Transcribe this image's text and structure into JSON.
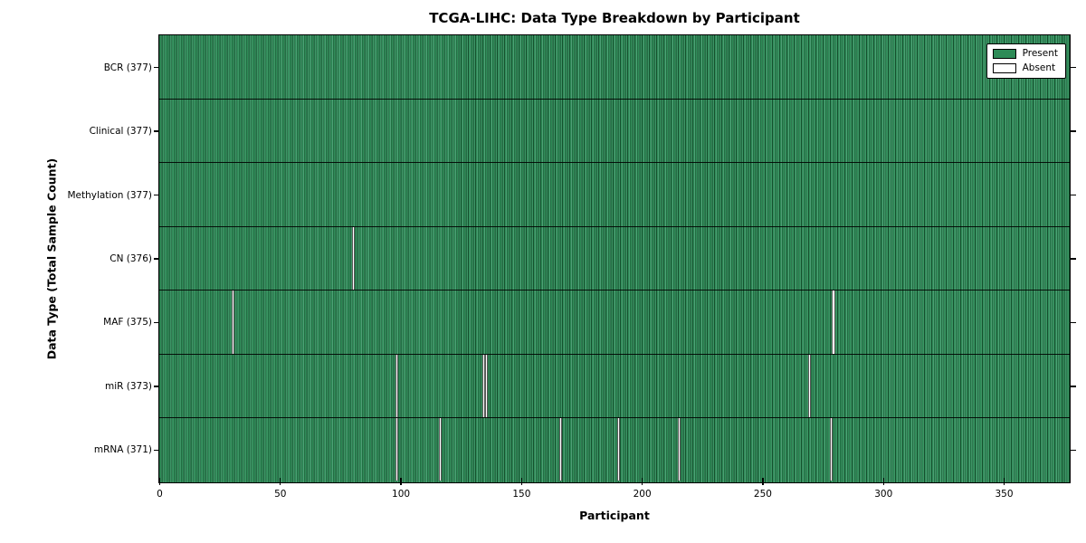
{
  "chart_data": {
    "type": "heatmap",
    "title": "TCGA-LIHC: Data Type Breakdown by Participant",
    "xlabel": "Participant",
    "ylabel": "Data Type (Total Sample Count)",
    "x_range": [
      0,
      377
    ],
    "x_ticks": [
      0,
      50,
      100,
      150,
      200,
      250,
      300,
      350
    ],
    "grid": false,
    "legend_position": "upper right",
    "colors": {
      "present": "#2e8b57",
      "absent": "#ffffff",
      "bar_edge": "#000000"
    },
    "legend": [
      {
        "label": "Present",
        "color": "#2e8b57"
      },
      {
        "label": "Absent",
        "color": "#ffffff"
      }
    ],
    "rows": [
      {
        "label": "BCR (377)",
        "name": "BCR",
        "total_samples": 377,
        "absent_participants": []
      },
      {
        "label": "Clinical (377)",
        "name": "Clinical",
        "total_samples": 377,
        "absent_participants": []
      },
      {
        "label": "Methylation (377)",
        "name": "Methylation",
        "total_samples": 377,
        "absent_participants": []
      },
      {
        "label": "CN (376)",
        "name": "CN",
        "total_samples": 376,
        "absent_participants": [
          80
        ]
      },
      {
        "label": "MAF (375)",
        "name": "MAF",
        "total_samples": 375,
        "absent_participants": [
          30,
          279
        ]
      },
      {
        "label": "miR (373)",
        "name": "miR",
        "total_samples": 373,
        "absent_participants": [
          98,
          134,
          135,
          269
        ]
      },
      {
        "label": "mRNA (371)",
        "name": "mRNA",
        "total_samples": 371,
        "absent_participants": [
          98,
          116,
          166,
          190,
          215,
          278
        ]
      }
    ]
  }
}
